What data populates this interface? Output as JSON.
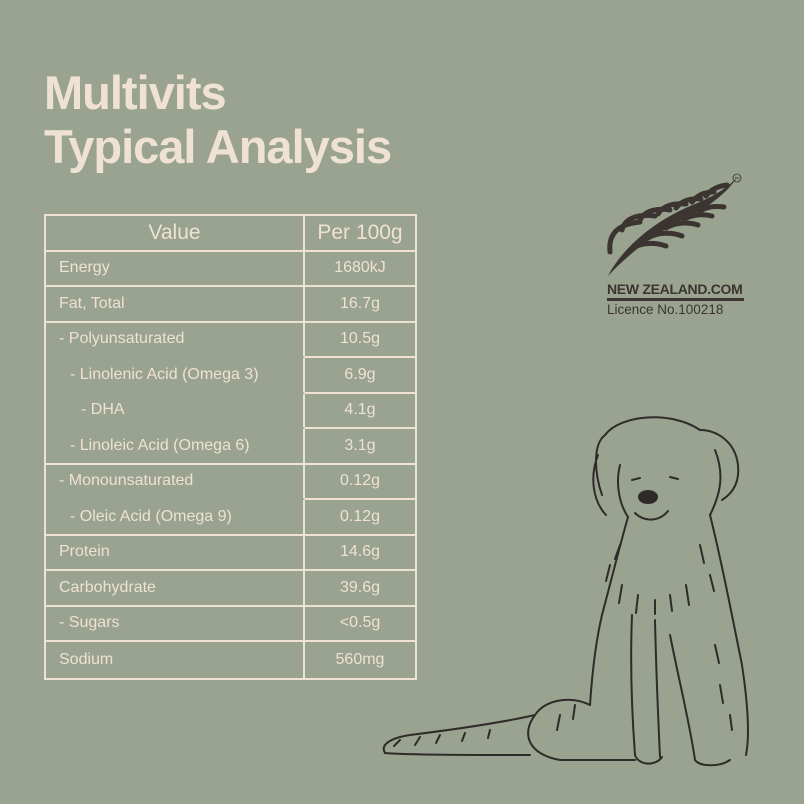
{
  "title": {
    "line1": "Multivits",
    "line2": "Typical Analysis"
  },
  "table": {
    "headers": {
      "label": "Value",
      "value": "Per 100g"
    },
    "rows": [
      {
        "label": "Energy",
        "value": "1680kJ",
        "indent": 0
      },
      {
        "label": "Fat, Total",
        "value": "16.7g",
        "indent": 0
      },
      {
        "label": "- Polyunsaturated",
        "value": "10.5g",
        "indent": 0
      },
      {
        "label": "- Linolenic Acid (Omega 3)",
        "value": "6.9g",
        "indent": 1
      },
      {
        "label": "- DHA",
        "value": "4.1g",
        "indent": 2
      },
      {
        "label": "- Linoleic Acid (Omega 6)",
        "value": "3.1g",
        "indent": 1
      },
      {
        "label": "- Monounsaturated",
        "value": "0.12g",
        "indent": 0
      },
      {
        "label": "- Oleic Acid (Omega 9)",
        "value": "0.12g",
        "indent": 1
      },
      {
        "label": "Protein",
        "value": "14.6g",
        "indent": 0
      },
      {
        "label": "Carbohydrate",
        "value": "39.6g",
        "indent": 0
      },
      {
        "label": "- Sugars",
        "value": "<0.5g",
        "indent": 0
      },
      {
        "label": "Sodium",
        "value": "560mg",
        "indent": 0
      }
    ]
  },
  "logo": {
    "brand": "NEW ZEALAND.COM",
    "licence": "Licence No.100218",
    "trademark": "TM",
    "icon": "silver-fern-icon"
  },
  "colors": {
    "background": "#99a38f",
    "text": "#efe2d2",
    "logo": "#3b3430",
    "illustration": "#2f2b28"
  }
}
